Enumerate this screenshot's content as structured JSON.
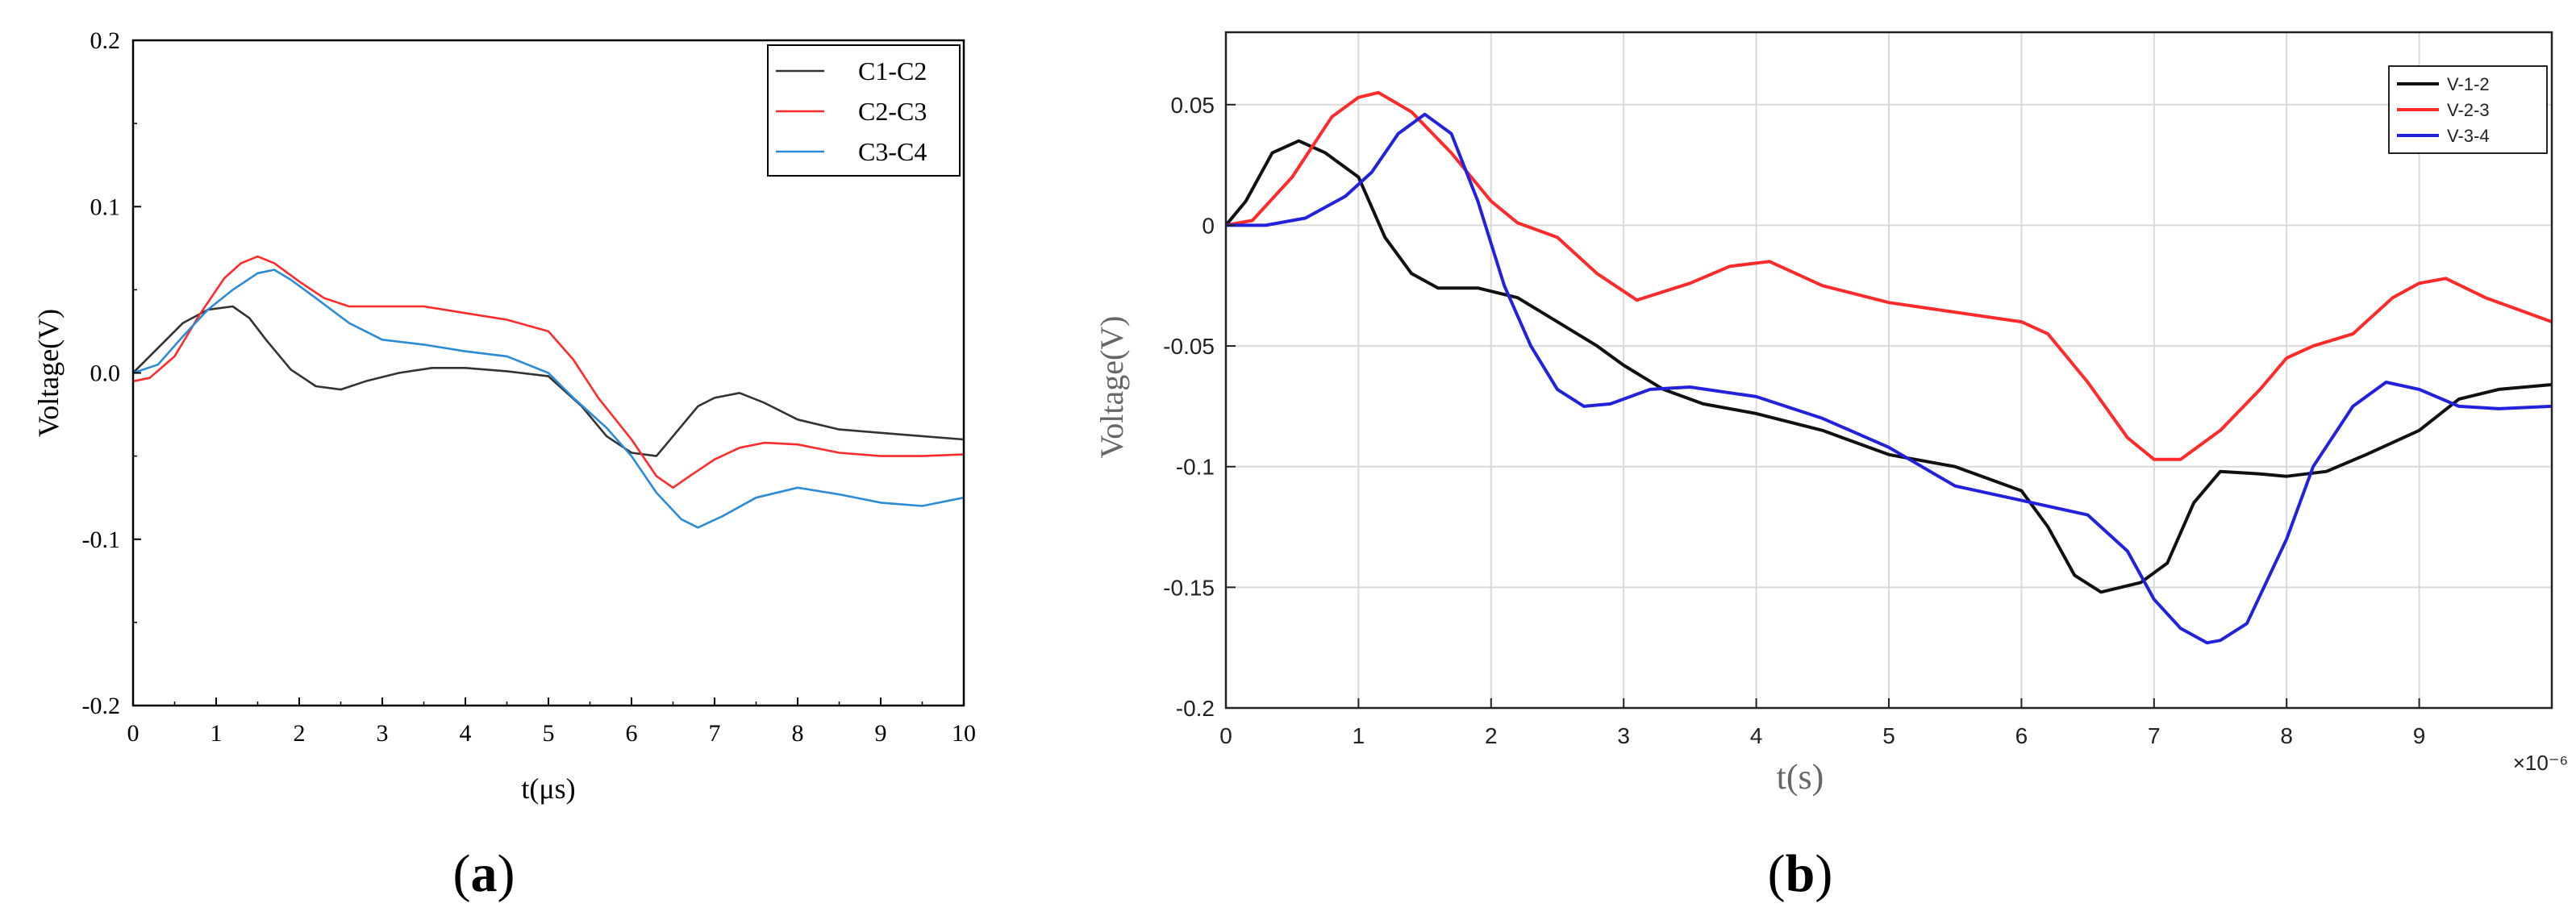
{
  "chart_data": [
    {
      "panel_label": "a",
      "type": "line",
      "xlabel": "t(μs)",
      "ylabel": "Voltage(V)",
      "xlim": [
        0,
        10
      ],
      "ylim": [
        -0.2,
        0.2
      ],
      "x_ticks": [
        0,
        1,
        2,
        3,
        4,
        5,
        6,
        7,
        8,
        9,
        10
      ],
      "x_tick_labels": [
        "0",
        "1",
        "2",
        "3",
        "4",
        "5",
        "6",
        "7",
        "8",
        "9",
        "10"
      ],
      "y_ticks": [
        -0.2,
        -0.1,
        0.0,
        0.1,
        0.2
      ],
      "y_tick_labels": [
        "-0.2",
        "-0.1",
        "0.0",
        "0.1",
        "0.2"
      ],
      "grid": false,
      "legend_position": "top-right",
      "series": [
        {
          "name": "C1-C2",
          "color": "#333333",
          "x": [
            0,
            0.3,
            0.6,
            0.9,
            1.2,
            1.4,
            1.6,
            1.9,
            2.2,
            2.5,
            2.8,
            3.2,
            3.6,
            4.0,
            4.5,
            5.0,
            5.4,
            5.7,
            6.0,
            6.3,
            6.5,
            6.8,
            7.0,
            7.3,
            7.6,
            8.0,
            8.5,
            9.0,
            9.5,
            10
          ],
          "y": [
            0.0,
            0.015,
            0.03,
            0.038,
            0.04,
            0.033,
            0.02,
            0.002,
            -0.008,
            -0.01,
            -0.005,
            0.0,
            0.003,
            0.003,
            0.001,
            -0.002,
            -0.02,
            -0.038,
            -0.048,
            -0.05,
            -0.038,
            -0.02,
            -0.015,
            -0.012,
            -0.018,
            -0.028,
            -0.034,
            -0.036,
            -0.038,
            -0.04
          ]
        },
        {
          "name": "C2-C3",
          "color": "#ff2b2b",
          "x": [
            0,
            0.2,
            0.5,
            0.8,
            1.1,
            1.3,
            1.5,
            1.7,
            2.0,
            2.3,
            2.6,
            3.0,
            3.5,
            4.0,
            4.5,
            5.0,
            5.3,
            5.6,
            6.0,
            6.3,
            6.5,
            6.7,
            7.0,
            7.3,
            7.6,
            8.0,
            8.5,
            9.0,
            9.5,
            10
          ],
          "y": [
            -0.005,
            -0.003,
            0.01,
            0.035,
            0.057,
            0.066,
            0.07,
            0.066,
            0.055,
            0.045,
            0.04,
            0.04,
            0.04,
            0.036,
            0.032,
            0.025,
            0.008,
            -0.015,
            -0.04,
            -0.062,
            -0.069,
            -0.062,
            -0.052,
            -0.045,
            -0.042,
            -0.043,
            -0.048,
            -0.05,
            -0.05,
            -0.049
          ]
        },
        {
          "name": "C3-C4",
          "color": "#2a8bd6",
          "x": [
            0,
            0.3,
            0.6,
            0.9,
            1.2,
            1.5,
            1.7,
            1.9,
            2.2,
            2.6,
            3.0,
            3.5,
            4.0,
            4.5,
            5.0,
            5.3,
            5.7,
            6.0,
            6.3,
            6.6,
            6.8,
            7.1,
            7.5,
            8.0,
            8.5,
            9.0,
            9.5,
            10
          ],
          "y": [
            0.0,
            0.005,
            0.022,
            0.038,
            0.05,
            0.06,
            0.062,
            0.056,
            0.045,
            0.03,
            0.02,
            0.017,
            0.013,
            0.01,
            0.0,
            -0.015,
            -0.033,
            -0.05,
            -0.072,
            -0.088,
            -0.093,
            -0.086,
            -0.075,
            -0.069,
            -0.073,
            -0.078,
            -0.08,
            -0.075
          ]
        }
      ]
    },
    {
      "panel_label": "b",
      "type": "line",
      "xlabel": "t(s)",
      "ylabel": "Voltage(V)",
      "x_multiplier": "×10⁻⁶",
      "xlim": [
        0,
        10
      ],
      "ylim": [
        -0.2,
        0.08
      ],
      "x_ticks": [
        0,
        1,
        2,
        3,
        4,
        5,
        6,
        7,
        8,
        9
      ],
      "x_tick_labels": [
        "0",
        "1",
        "2",
        "3",
        "4",
        "5",
        "6",
        "7",
        "8",
        "9"
      ],
      "y_ticks": [
        -0.2,
        -0.15,
        -0.1,
        -0.05,
        0,
        0.05
      ],
      "y_tick_labels": [
        "-0.2",
        "-0.15",
        "-0.1",
        "-0.05",
        "0",
        "0.05"
      ],
      "grid": true,
      "legend_position": "top-right",
      "series": [
        {
          "name": "V-1-2",
          "color": "#111111",
          "x": [
            0,
            0.15,
            0.35,
            0.55,
            0.75,
            1.0,
            1.2,
            1.4,
            1.6,
            1.9,
            2.2,
            2.5,
            2.8,
            3.0,
            3.3,
            3.6,
            4.0,
            4.5,
            5.0,
            5.5,
            6.0,
            6.2,
            6.4,
            6.6,
            6.9,
            7.1,
            7.3,
            7.5,
            7.8,
            8.0,
            8.3,
            8.6,
            9.0,
            9.3,
            9.6,
            10
          ],
          "y": [
            0,
            0.01,
            0.03,
            0.035,
            0.03,
            0.02,
            -0.005,
            -0.02,
            -0.026,
            -0.026,
            -0.03,
            -0.04,
            -0.05,
            -0.058,
            -0.068,
            -0.074,
            -0.078,
            -0.085,
            -0.095,
            -0.1,
            -0.11,
            -0.125,
            -0.145,
            -0.152,
            -0.148,
            -0.14,
            -0.115,
            -0.102,
            -0.103,
            -0.104,
            -0.102,
            -0.095,
            -0.085,
            -0.072,
            -0.068,
            -0.066
          ]
        },
        {
          "name": "V-2-3",
          "color": "#ff2a2a",
          "x": [
            0,
            0.2,
            0.5,
            0.8,
            1.0,
            1.15,
            1.4,
            1.7,
            2.0,
            2.2,
            2.5,
            2.8,
            3.1,
            3.5,
            3.8,
            4.1,
            4.5,
            5.0,
            5.5,
            6.0,
            6.2,
            6.5,
            6.8,
            7.0,
            7.2,
            7.5,
            7.8,
            8.0,
            8.2,
            8.5,
            8.8,
            9.0,
            9.2,
            9.5,
            10
          ],
          "y": [
            0,
            0.002,
            0.02,
            0.045,
            0.053,
            0.055,
            0.047,
            0.03,
            0.01,
            0.001,
            -0.005,
            -0.02,
            -0.031,
            -0.024,
            -0.017,
            -0.015,
            -0.025,
            -0.032,
            -0.036,
            -0.04,
            -0.045,
            -0.065,
            -0.088,
            -0.097,
            -0.097,
            -0.085,
            -0.068,
            -0.055,
            -0.05,
            -0.045,
            -0.03,
            -0.024,
            -0.022,
            -0.03,
            -0.04
          ]
        },
        {
          "name": "V-3-4",
          "color": "#2222dd",
          "x": [
            0,
            0.3,
            0.6,
            0.9,
            1.1,
            1.3,
            1.5,
            1.7,
            1.9,
            2.1,
            2.3,
            2.5,
            2.7,
            2.9,
            3.2,
            3.5,
            4.0,
            4.5,
            5.0,
            5.5,
            6.0,
            6.5,
            6.8,
            7.0,
            7.2,
            7.4,
            7.5,
            7.7,
            8.0,
            8.2,
            8.5,
            8.75,
            9.0,
            9.3,
            9.6,
            10
          ],
          "y": [
            0,
            0,
            0.003,
            0.012,
            0.022,
            0.038,
            0.046,
            0.038,
            0.01,
            -0.025,
            -0.05,
            -0.068,
            -0.075,
            -0.074,
            -0.068,
            -0.067,
            -0.071,
            -0.08,
            -0.092,
            -0.108,
            -0.114,
            -0.12,
            -0.135,
            -0.155,
            -0.167,
            -0.173,
            -0.172,
            -0.165,
            -0.13,
            -0.1,
            -0.075,
            -0.065,
            -0.068,
            -0.075,
            -0.076,
            -0.075
          ]
        }
      ]
    }
  ],
  "labels": {
    "panel_a": "a",
    "panel_b": "b"
  }
}
